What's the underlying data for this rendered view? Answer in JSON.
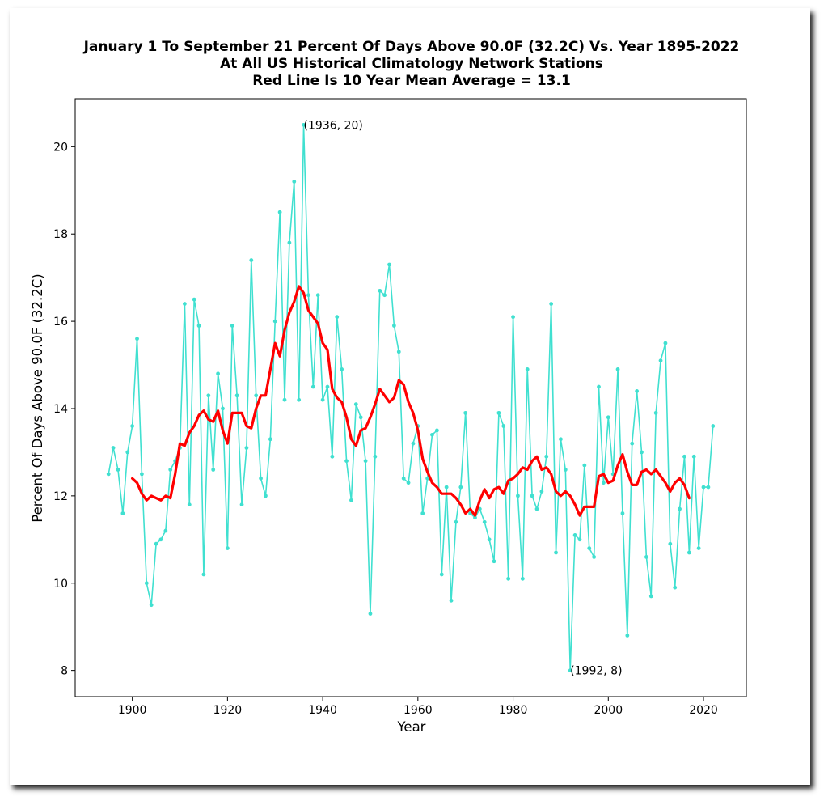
{
  "chart_data": {
    "type": "line",
    "title_lines": [
      "January 1 To September 21 Percent Of Days Above 90.0F (32.2C) Vs. Year 1895-2022",
      "At All US Historical Climatology Network Stations",
      "Red Line Is 10 Year Mean  Average = 13.1"
    ],
    "xlabel": "Year",
    "ylabel": "Percent Of Days Above 90.0F (32.2C)",
    "xlim": [
      1888,
      2029
    ],
    "ylim": [
      7.4,
      21.1
    ],
    "xticks": [
      1900,
      1920,
      1940,
      1960,
      1980,
      2000,
      2020
    ],
    "yticks": [
      8,
      10,
      12,
      14,
      16,
      18,
      20
    ],
    "grid": false,
    "legend": "none",
    "series": [
      {
        "color": "#40E0D0",
        "marker": "dot",
        "x": [
          1895,
          1896,
          1897,
          1898,
          1899,
          1900,
          1901,
          1902,
          1903,
          1904,
          1905,
          1906,
          1907,
          1908,
          1909,
          1910,
          1911,
          1912,
          1913,
          1914,
          1915,
          1916,
          1917,
          1918,
          1919,
          1920,
          1921,
          1922,
          1923,
          1924,
          1925,
          1926,
          1927,
          1928,
          1929,
          1930,
          1931,
          1932,
          1933,
          1934,
          1935,
          1936,
          1937,
          1938,
          1939,
          1940,
          1941,
          1942,
          1943,
          1944,
          1945,
          1946,
          1947,
          1948,
          1949,
          1950,
          1951,
          1952,
          1953,
          1954,
          1955,
          1956,
          1957,
          1958,
          1959,
          1960,
          1961,
          1962,
          1963,
          1964,
          1965,
          1966,
          1967,
          1968,
          1969,
          1970,
          1971,
          1972,
          1973,
          1974,
          1975,
          1976,
          1977,
          1978,
          1979,
          1980,
          1981,
          1982,
          1983,
          1984,
          1985,
          1986,
          1987,
          1988,
          1989,
          1990,
          1991,
          1992,
          1993,
          1994,
          1995,
          1996,
          1997,
          1998,
          1999,
          2000,
          2001,
          2002,
          2003,
          2004,
          2005,
          2006,
          2007,
          2008,
          2009,
          2010,
          2011,
          2012,
          2013,
          2014,
          2015,
          2016,
          2017,
          2018,
          2019,
          2020,
          2021,
          2022
        ],
        "y": [
          12.5,
          13.1,
          12.6,
          11.6,
          13.0,
          13.6,
          15.6,
          12.5,
          10.0,
          9.5,
          10.9,
          11.0,
          11.2,
          12.6,
          12.8,
          13.1,
          16.4,
          11.8,
          16.5,
          15.9,
          10.2,
          14.3,
          12.6,
          14.8,
          14.0,
          10.8,
          15.9,
          14.3,
          11.8,
          13.1,
          17.4,
          14.3,
          12.4,
          12.0,
          13.3,
          16.0,
          18.5,
          14.2,
          17.8,
          19.2,
          14.2,
          20.5,
          16.6,
          14.5,
          16.6,
          14.2,
          14.5,
          12.9,
          16.1,
          14.9,
          12.8,
          11.9,
          14.1,
          13.8,
          12.8,
          9.3,
          12.9,
          16.7,
          16.6,
          17.3,
          15.9,
          15.3,
          12.4,
          12.3,
          13.2,
          13.6,
          11.6,
          12.4,
          13.4,
          13.5,
          10.2,
          12.2,
          9.6,
          11.4,
          12.2,
          13.9,
          11.6,
          11.5,
          11.7,
          11.4,
          11.0,
          10.5,
          13.9,
          13.6,
          10.1,
          16.1,
          12.0,
          10.1,
          14.9,
          12.0,
          11.7,
          12.1,
          12.9,
          16.4,
          10.7,
          13.3,
          12.6,
          8.0,
          11.1,
          11.0,
          12.7,
          10.8,
          10.6,
          14.5,
          12.3,
          13.8,
          12.5,
          14.9,
          11.6,
          8.8,
          13.2,
          14.4,
          13.0,
          10.6,
          9.7,
          13.9,
          15.1,
          15.5,
          10.9,
          9.9,
          11.7,
          12.9,
          10.7,
          12.9,
          10.8,
          12.2,
          12.2,
          13.6
        ]
      },
      {
        "color": "#FF0000",
        "marker": "none",
        "x": [
          1900,
          1901,
          1902,
          1903,
          1904,
          1905,
          1906,
          1907,
          1908,
          1909,
          1910,
          1911,
          1912,
          1913,
          1914,
          1915,
          1916,
          1917,
          1918,
          1919,
          1920,
          1921,
          1922,
          1923,
          1924,
          1925,
          1926,
          1927,
          1928,
          1929,
          1930,
          1931,
          1932,
          1933,
          1934,
          1935,
          1936,
          1937,
          1938,
          1939,
          1940,
          1941,
          1942,
          1943,
          1944,
          1945,
          1946,
          1947,
          1948,
          1949,
          1950,
          1951,
          1952,
          1953,
          1954,
          1955,
          1956,
          1957,
          1958,
          1959,
          1960,
          1961,
          1962,
          1963,
          1964,
          1965,
          1966,
          1967,
          1968,
          1969,
          1970,
          1971,
          1972,
          1973,
          1974,
          1975,
          1976,
          1977,
          1978,
          1979,
          1980,
          1981,
          1982,
          1983,
          1984,
          1985,
          1986,
          1987,
          1988,
          1989,
          1990,
          1991,
          1992,
          1993,
          1994,
          1995,
          1996,
          1997,
          1998,
          1999,
          2000,
          2001,
          2002,
          2003,
          2004,
          2005,
          2006,
          2007,
          2008,
          2009,
          2010,
          2011,
          2012,
          2013,
          2014,
          2015,
          2016,
          2017
        ],
        "y": [
          12.4,
          12.3,
          12.05,
          11.9,
          12.0,
          11.95,
          11.9,
          12.0,
          11.95,
          12.5,
          13.2,
          13.15,
          13.45,
          13.6,
          13.85,
          13.95,
          13.75,
          13.7,
          13.95,
          13.5,
          13.2,
          13.9,
          13.9,
          13.9,
          13.6,
          13.55,
          14.0,
          14.3,
          14.3,
          14.9,
          15.5,
          15.2,
          15.8,
          16.2,
          16.45,
          16.8,
          16.65,
          16.25,
          16.1,
          15.95,
          15.5,
          15.35,
          14.45,
          14.25,
          14.15,
          13.8,
          13.3,
          13.15,
          13.5,
          13.55,
          13.8,
          14.1,
          14.45,
          14.3,
          14.15,
          14.25,
          14.65,
          14.55,
          14.15,
          13.9,
          13.5,
          12.85,
          12.55,
          12.3,
          12.2,
          12.05,
          12.05,
          12.05,
          11.95,
          11.8,
          11.6,
          11.7,
          11.55,
          11.9,
          12.15,
          11.95,
          12.15,
          12.2,
          12.05,
          12.35,
          12.4,
          12.5,
          12.65,
          12.6,
          12.8,
          12.9,
          12.6,
          12.65,
          12.5,
          12.1,
          12.0,
          12.1,
          12.0,
          11.8,
          11.55,
          11.75,
          11.75,
          11.75,
          12.45,
          12.5,
          12.3,
          12.35,
          12.7,
          12.95,
          12.55,
          12.25,
          12.25,
          12.55,
          12.6,
          12.5,
          12.6,
          12.45,
          12.3,
          12.1,
          12.3,
          12.4,
          12.25,
          11.95
        ]
      }
    ],
    "annotations": [
      {
        "text": "(1936, 20)",
        "x": 1936,
        "y": 20.5
      },
      {
        "text": "(1992, 8)",
        "x": 1992,
        "y": 8.0
      }
    ]
  }
}
